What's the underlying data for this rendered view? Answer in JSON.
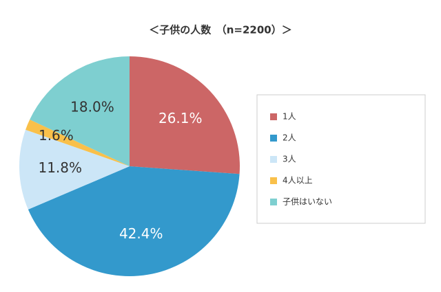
{
  "chart_data": {
    "type": "pie",
    "title": "＜子供の人数　（n=2200）＞",
    "categories": [
      "1人",
      "2人",
      "3人",
      "4人以上",
      "子供はいない"
    ],
    "values": [
      26.1,
      42.4,
      11.8,
      1.6,
      18.0
    ],
    "value_labels": [
      "26.1%",
      "42.4%",
      "11.8%",
      "1.6%",
      "18.0%"
    ],
    "colors": [
      "#cc6666",
      "#3399cc",
      "#cce6f7",
      "#f9c04a",
      "#7ecfd0"
    ],
    "legend": "right"
  }
}
